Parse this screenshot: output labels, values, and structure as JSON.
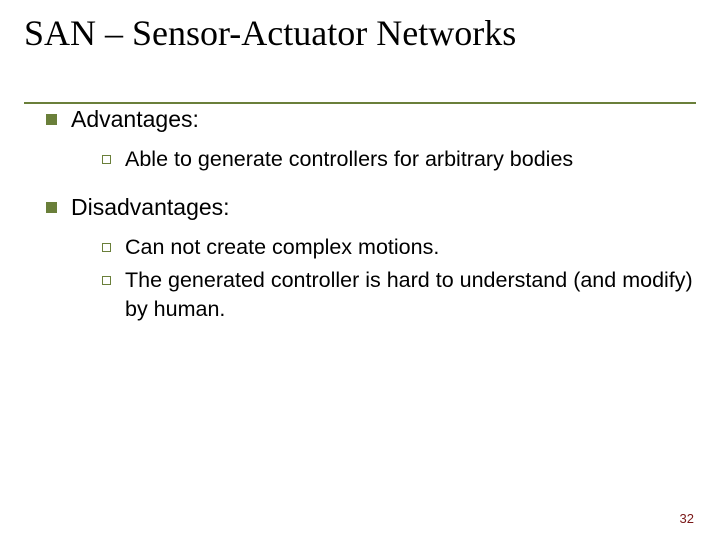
{
  "colors": {
    "accent": "#6a7f3a",
    "text": "#000000",
    "page_num": "#7a1818",
    "background": "#ffffff"
  },
  "typography": {
    "title_font": "Georgia serif",
    "body_font": "Arial sans-serif",
    "title_size_pt": 36,
    "l1_size_pt": 23,
    "l2_size_pt": 21.5,
    "page_num_size_pt": 13
  },
  "title": "SAN – Sensor-Actuator Networks",
  "sections": [
    {
      "heading": "Advantages:",
      "items": [
        "Able to generate controllers for arbitrary bodies"
      ]
    },
    {
      "heading": "Disadvantages:",
      "items": [
        "Can not create complex motions.",
        "The generated controller is hard to understand (and modify) by human."
      ]
    }
  ],
  "page_number": "32"
}
